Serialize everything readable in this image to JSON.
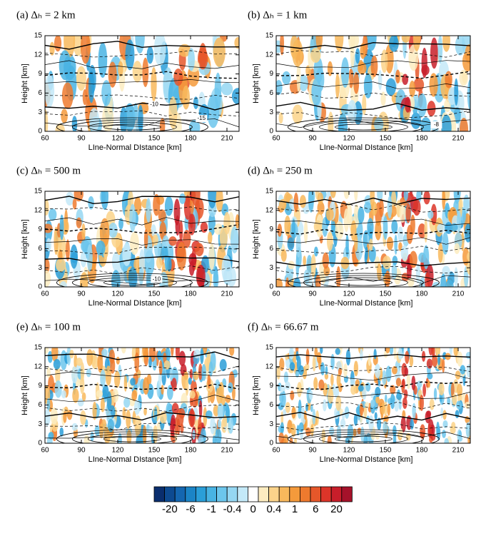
{
  "chart_data": [
    {
      "type": "contour",
      "title": "(a) Δₕ = 2 km",
      "x_label": "LIne-Normal DIstance [km]",
      "y_label": "Height [km]",
      "xlim": [
        60,
        220
      ],
      "ylim": [
        0,
        15
      ],
      "xticks": [
        60,
        90,
        120,
        150,
        180,
        210
      ],
      "yticks": [
        0,
        3,
        6,
        9,
        12,
        15
      ],
      "annotations": [
        "-10",
        "-15"
      ]
    },
    {
      "type": "contour",
      "title": "(b) Δₕ = 1 km",
      "x_label": "LIne-Normal DIstance [km]",
      "y_label": "Height [km]",
      "xlim": [
        60,
        220
      ],
      "ylim": [
        0,
        15
      ],
      "xticks": [
        60,
        90,
        120,
        150,
        180,
        210
      ],
      "yticks": [
        0,
        3,
        6,
        9,
        12,
        15
      ],
      "annotations": [
        "-8"
      ]
    },
    {
      "type": "contour",
      "title": "(c) Δₕ = 500 m",
      "x_label": "LIne-Normal DIstance [km]",
      "y_label": "Height [km]",
      "xlim": [
        60,
        220
      ],
      "ylim": [
        0,
        15
      ],
      "xticks": [
        60,
        90,
        120,
        150,
        180,
        210
      ],
      "yticks": [
        0,
        3,
        6,
        9,
        12,
        15
      ],
      "annotations": [
        "-10"
      ]
    },
    {
      "type": "contour",
      "title": "(d) Δₕ = 250 m",
      "x_label": "LIne-Normal DIstance [km]",
      "y_label": "Height [km]",
      "xlim": [
        60,
        220
      ],
      "ylim": [
        0,
        15
      ],
      "xticks": [
        60,
        90,
        120,
        150,
        180,
        210
      ],
      "yticks": [
        0,
        3,
        6,
        9,
        12,
        15
      ],
      "annotations": []
    },
    {
      "type": "contour",
      "title": "(e) Δₕ = 100 m",
      "x_label": "LIne-Normal DIstance [km]",
      "y_label": "Height [km]",
      "xlim": [
        60,
        220
      ],
      "ylim": [
        0,
        15
      ],
      "xticks": [
        60,
        90,
        120,
        150,
        180,
        210
      ],
      "yticks": [
        0,
        3,
        6,
        9,
        12,
        15
      ],
      "annotations": []
    },
    {
      "type": "contour",
      "title": "(f) Δₕ = 66.67 m",
      "x_label": "LIne-Normal DIstance [km]",
      "y_label": "Height [km]",
      "xlim": [
        60,
        220
      ],
      "ylim": [
        0,
        15
      ],
      "xticks": [
        60,
        90,
        120,
        150,
        180,
        210
      ],
      "yticks": [
        0,
        3,
        6,
        9,
        12,
        15
      ],
      "annotations": []
    },
    {
      "type": "colorbar",
      "colors": [
        "#0a2e6e",
        "#0d4a91",
        "#1466b0",
        "#1b84c6",
        "#2a9ed8",
        "#48b3e3",
        "#6cc6ec",
        "#95d7f2",
        "#c4e9f8",
        "#ffffff",
        "#fdecc0",
        "#fbd38a",
        "#f8b85c",
        "#f49a3b",
        "#ee7a2e",
        "#e6572a",
        "#dc3529",
        "#c81e2a",
        "#a5122a"
      ],
      "ticks": [
        -20,
        -6,
        -1,
        -0.4,
        0,
        0.4,
        1,
        6,
        20
      ]
    }
  ]
}
